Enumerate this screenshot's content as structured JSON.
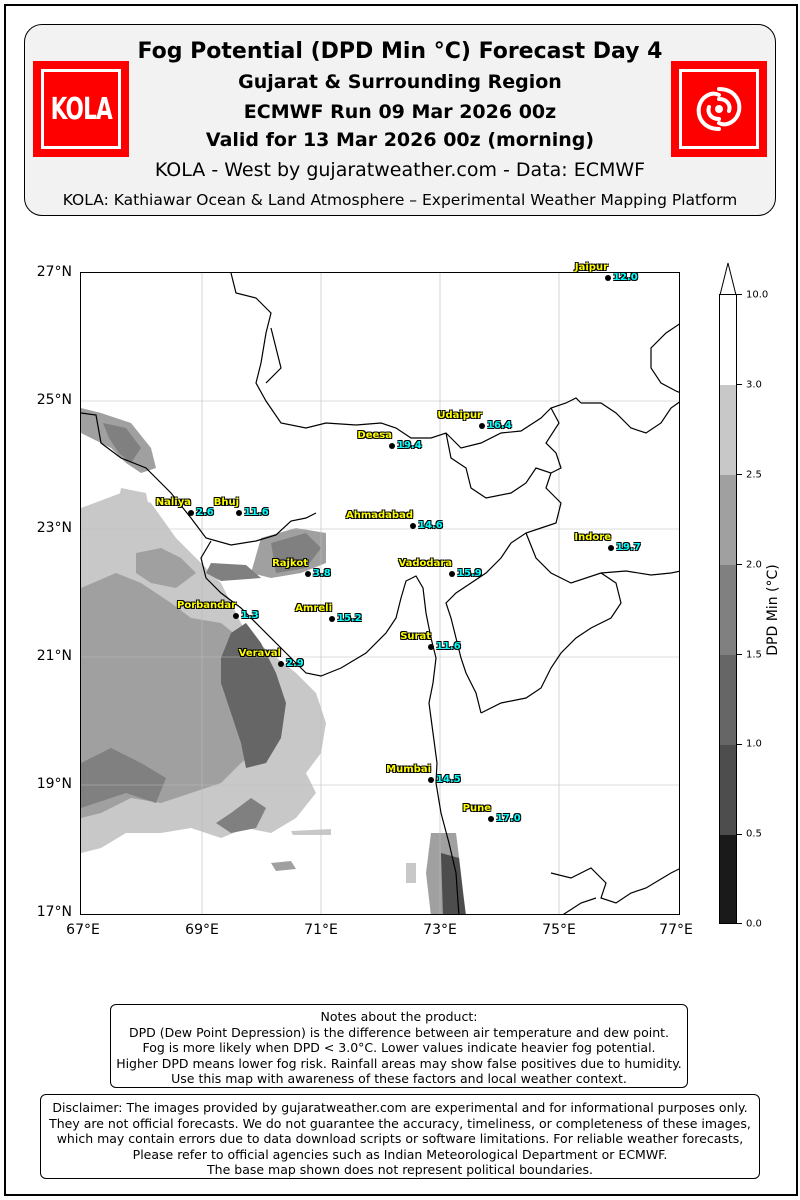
{
  "header": {
    "title": "Fog Potential (DPD Min °C) Forecast Day 4",
    "region": "Gujarat & Surrounding Region",
    "run": "ECMWF Run 09 Mar 2026 00z",
    "valid": "Valid for 13 Mar 2026 00z (morning)",
    "credit": "KOLA - West by gujaratweather.com  -  Data: ECMWF",
    "platform": "KOLA: Kathiawar Ocean & Land Atmosphere – Experimental Weather Mapping Platform",
    "logo_text": "KOLA",
    "logo_color": "#ff0000"
  },
  "axes": {
    "lat_labels": [
      "27°N",
      "25°N",
      "23°N",
      "21°N",
      "19°N",
      "17°N"
    ],
    "lon_labels": [
      "67°E",
      "69°E",
      "71°E",
      "73°E",
      "75°E",
      "77°E"
    ],
    "lat_range": [
      17,
      27
    ],
    "lon_range": [
      67,
      77
    ]
  },
  "cities": [
    {
      "name": "Jaipur",
      "value": "12.0",
      "lon": 75.8,
      "lat": 26.9
    },
    {
      "name": "Udaipur",
      "value": "16.4",
      "lon": 73.7,
      "lat": 24.6
    },
    {
      "name": "Deesa",
      "value": "19.4",
      "lon": 72.2,
      "lat": 24.3
    },
    {
      "name": "Naliya",
      "value": "2.6",
      "lon": 68.85,
      "lat": 23.25
    },
    {
      "name": "Bhuj",
      "value": "11.6",
      "lon": 69.65,
      "lat": 23.25
    },
    {
      "name": "Ahmadabad",
      "value": "14.6",
      "lon": 72.55,
      "lat": 23.05
    },
    {
      "name": "Indore",
      "value": "19.7",
      "lon": 75.85,
      "lat": 22.7
    },
    {
      "name": "Rajkot",
      "value": "3.8",
      "lon": 70.8,
      "lat": 22.3
    },
    {
      "name": "Vadodara",
      "value": "15.9",
      "lon": 73.2,
      "lat": 22.3
    },
    {
      "name": "Porbandar",
      "value": "1.3",
      "lon": 69.6,
      "lat": 21.65
    },
    {
      "name": "Amreli",
      "value": "15.2",
      "lon": 71.2,
      "lat": 21.6
    },
    {
      "name": "Surat",
      "value": "11.6",
      "lon": 72.85,
      "lat": 21.17
    },
    {
      "name": "Veraval",
      "value": "2.9",
      "lon": 70.35,
      "lat": 20.9
    },
    {
      "name": "Mumbai",
      "value": "14.5",
      "lon": 72.85,
      "lat": 19.1
    },
    {
      "name": "Pune",
      "value": "17.0",
      "lon": 73.85,
      "lat": 18.5
    }
  ],
  "colorbar": {
    "label": "DPD Min (°C)",
    "ticks": [
      "0.0",
      "0.5",
      "1.0",
      "1.5",
      "2.0",
      "2.5",
      "3.0",
      "10.0"
    ],
    "colors": [
      "#1a1a1a",
      "#333333",
      "#4d4d4d",
      "#666666",
      "#808080",
      "#a0a0a0",
      "#c8c8c8",
      "#ffffff"
    ]
  },
  "notes": [
    "Notes about the product:",
    "DPD (Dew Point Depression) is the difference between air temperature and dew point.",
    "Fog is more likely when DPD < 3.0°C. Lower values indicate heavier fog potential.",
    "Higher DPD means lower fog risk. Rainfall areas may show false positives due to humidity.",
    "Use this map with awareness of these factors and local weather context."
  ],
  "disclaimer": [
    "Disclaimer: The images provided by gujaratweather.com are experimental and for informational purposes only.",
    "They are not official forecasts. We do not guarantee the accuracy, timeliness, or completeness of these images,",
    "which may contain errors due to data download scripts or software limitations. For reliable weather forecasts,",
    "Please refer to official agencies such as Indian Meteorological Department or ECMWF.",
    "The base map shown does not represent political boundaries."
  ]
}
